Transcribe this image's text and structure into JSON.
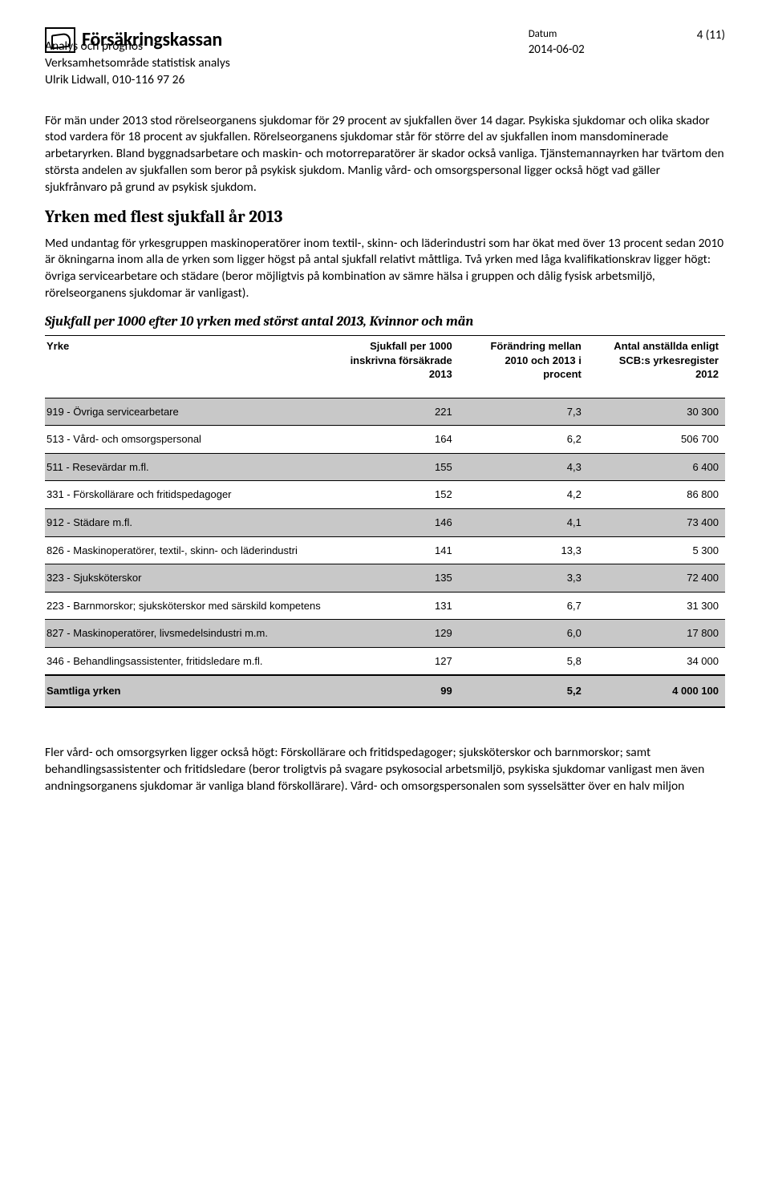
{
  "header": {
    "brand": "Försäkringskassan",
    "org_line1": "Analys och prognos",
    "org_line2": "Verksamhetsområde statistisk analys",
    "org_line3": "Ulrik Lidwall, 010-116 97 26",
    "datum_label": "Datum",
    "datum_value": "2014-06-02",
    "page_number": "4 (11)"
  },
  "body": {
    "p1": "För män under 2013 stod rörelseorganens sjukdomar för 29 procent av sjukfallen över 14 dagar. Psykiska sjukdomar och olika skador stod vardera för 18 procent av sjukfallen. Rörelseorganens sjukdomar står för större del av sjukfallen inom mansdominerade arbetaryrken. Bland byggnadsarbetare och maskin- och motorreparatörer är skador också vanliga. Tjänstemannayrken har tvärtom den största andelen av sjukfallen som beror på psykisk sjukdom. Manlig vård- och omsorgspersonal ligger också högt vad gäller sjukfrånvaro på grund av psykisk sjukdom.",
    "h2": "Yrken med flest sjukfall år 2013",
    "p2": "Med undantag för yrkesgruppen maskinoperatörer inom textil-, skinn- och läderindustri som har ökat med över 13 procent sedan 2010 är ökningarna inom alla de yrken som ligger högst på antal sjukfall relativt måttliga. Två yrken med låga kvalifikationskrav ligger högt: övriga servicearbetare och städare (beror möjligtvis på kombination av sämre hälsa i gruppen och dålig fysisk arbetsmiljö, rörelseorganens sjukdomar är vanligast).",
    "subhead": "Sjukfall per 1000 efter 10 yrken med störst antal 2013, Kvinnor och män",
    "p3": "Fler vård- och omsorgsyrken ligger också högt: Förskollärare och fritidspedagoger; sjuksköterskor och barnmorskor; samt behandlingsassistenter och fritidsledare (beror troligtvis på svagare psykosocial arbetsmiljö, psykiska sjukdomar vanligast men även andningsorganens sjukdomar är vanliga bland förskollärare). Vård- och omsorgspersonalen som sysselsätter över en halv miljon"
  },
  "table": {
    "col_hdr": {
      "c1": "Yrke",
      "c2": "Sjukfall per 1000 inskrivna försäkrade 2013",
      "c3": "Förändring mellan 2010 och 2013 i procent",
      "c4": "Antal anställda enligt SCB:s yrkesregister 2012"
    },
    "rows": [
      {
        "shade": true,
        "yrke": "919 - Övriga servicearbetare",
        "v1": "221",
        "v2": "7,3",
        "v3": "30 300"
      },
      {
        "shade": false,
        "yrke": "513 - Vård- och omsorgspersonal",
        "v1": "164",
        "v2": "6,2",
        "v3": "506 700"
      },
      {
        "shade": true,
        "yrke": "511 - Resevärdar m.fl.",
        "v1": "155",
        "v2": "4,3",
        "v3": "6 400"
      },
      {
        "shade": false,
        "yrke": "331 - Förskollärare och fritidspedagoger",
        "v1": "152",
        "v2": "4,2",
        "v3": "86 800"
      },
      {
        "shade": true,
        "yrke": "912 - Städare m.fl.",
        "v1": "146",
        "v2": "4,1",
        "v3": "73 400"
      },
      {
        "shade": false,
        "yrke": "826 - Maskinoperatörer, textil-, skinn- och läderindustri",
        "v1": "141",
        "v2": "13,3",
        "v3": "5 300"
      },
      {
        "shade": true,
        "yrke": "323 - Sjuksköterskor",
        "v1": "135",
        "v2": "3,3",
        "v3": "72 400"
      },
      {
        "shade": false,
        "yrke": "223 - Barnmorskor; sjuksköterskor med särskild kompetens",
        "v1": "131",
        "v2": "6,7",
        "v3": "31 300"
      },
      {
        "shade": true,
        "yrke": "827 - Maskinoperatörer, livsmedelsindustri m.m.",
        "v1": "129",
        "v2": "6,0",
        "v3": "17 800"
      },
      {
        "shade": false,
        "yrke": "346 - Behandlingsassistenter, fritidsledare m.fl.",
        "v1": "127",
        "v2": "5,8",
        "v3": "34 000"
      }
    ],
    "total": {
      "yrke": "Samtliga yrken",
      "v1": "99",
      "v2": "5,2",
      "v3": "4 000 100"
    }
  }
}
